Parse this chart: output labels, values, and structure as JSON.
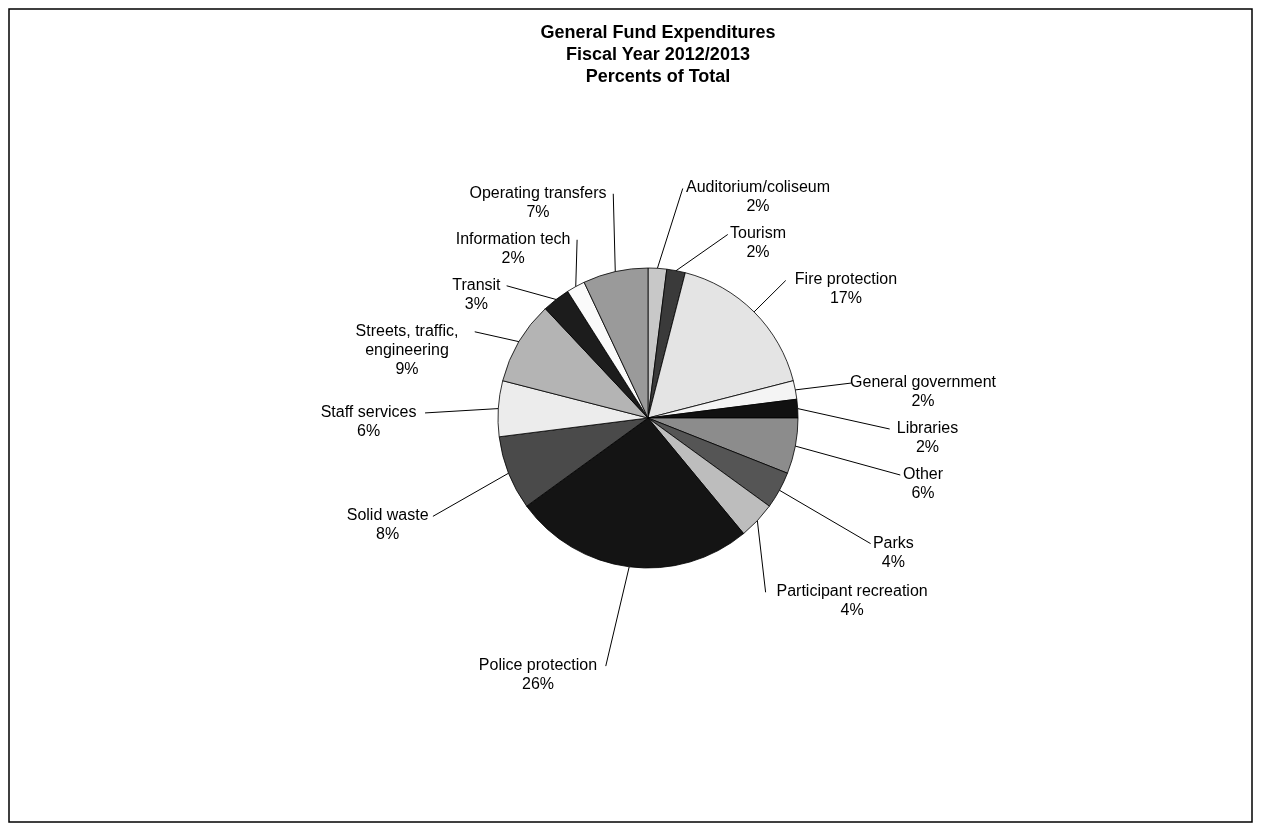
{
  "chart_data": {
    "type": "pie",
    "title": "General Fund Expenditures\nFiscal Year 2012/2013\nPercents of Total",
    "categories": [
      "Auditorium/coliseum",
      "Tourism",
      "Fire protection",
      "General government",
      "Libraries",
      "Other",
      "Parks",
      "Participant recreation",
      "Police protection",
      "Solid waste",
      "Staff services",
      "Streets, traffic, engineering",
      "Transit",
      "Information tech",
      "Operating transfers"
    ],
    "values": [
      2,
      2,
      17,
      2,
      2,
      6,
      4,
      4,
      26,
      8,
      6,
      9,
      3,
      2,
      7
    ],
    "colors": [
      "#c8c8c8",
      "#3a3a3a",
      "#e4e4e4",
      "#f4f4f4",
      "#111111",
      "#8c8c8c",
      "#555555",
      "#bdbdbd",
      "#141414",
      "#4a4a4a",
      "#ececec",
      "#b4b4b4",
      "#1c1c1c",
      "#fafafa",
      "#9a9a9a"
    ],
    "value_labels": [
      "2%",
      "2%",
      "17%",
      "2%",
      "2%",
      "6%",
      "4%",
      "4%",
      "26%",
      "8%",
      "6%",
      "9%",
      "3%",
      "2%",
      "7%"
    ]
  }
}
